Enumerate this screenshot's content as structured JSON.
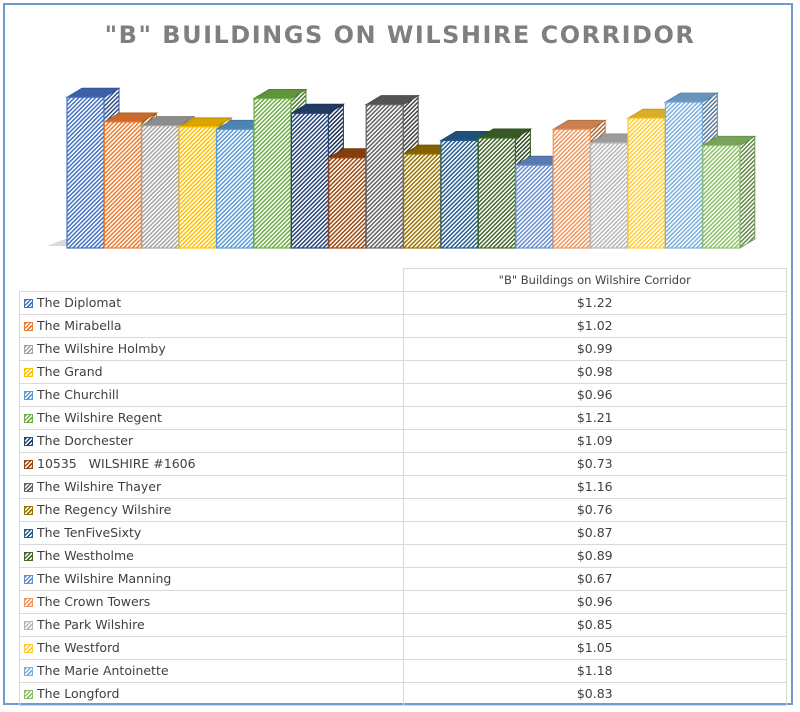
{
  "chart_data": {
    "type": "bar",
    "title": "\"B\" BUILDINGS ON WILSHIRE CORRIDOR",
    "series": [
      {
        "name": "\"B\" Buildings on Wilshire Corridor",
        "values": [
          1.22,
          1.02,
          0.99,
          0.98,
          0.96,
          1.21,
          1.09,
          0.73,
          1.16,
          0.76,
          0.87,
          0.89,
          0.67,
          0.96,
          0.85,
          1.05,
          1.18,
          0.83
        ],
        "labels": [
          "$1.22",
          "$1.02",
          "$0.99",
          "$0.98",
          "$0.96",
          "$1.21",
          "$1.09",
          "$0.73",
          "$1.16",
          "$0.76",
          "$0.87",
          "$0.89",
          "$0.67",
          "$0.96",
          "$0.85",
          "$1.05",
          "$1.18",
          "$0.83"
        ]
      }
    ],
    "categories": [
      "The Diplomat",
      "The Mirabella",
      "The Wilshire Holmby",
      "The Grand",
      "The Churchill",
      "The Wilshire Regent",
      "The Dorchester",
      "10535   WILSHIRE #1606",
      "The Wilshire Thayer",
      "The Regency Wilshire",
      "The TenFiveSixty",
      "The Westholme",
      "The Wilshire Manning",
      "The Crown Towers",
      "The Park Wilshire",
      "The Westford",
      "The Marie Antoinette",
      "The Longford"
    ],
    "colors": [
      "#4472c4",
      "#ed7d31",
      "#a5a5a5",
      "#ffc000",
      "#5b9bd5",
      "#70ad47",
      "#264478",
      "#9e480e",
      "#636363",
      "#997300",
      "#255e91",
      "#43682b",
      "#698ed0",
      "#f1975a",
      "#b7b7b7",
      "#ffcd33",
      "#7cafdd",
      "#8cc168"
    ],
    "ylim": [
      0,
      1.4
    ],
    "grid": false,
    "legend": "data-table",
    "xlabel": "",
    "ylabel": ""
  }
}
